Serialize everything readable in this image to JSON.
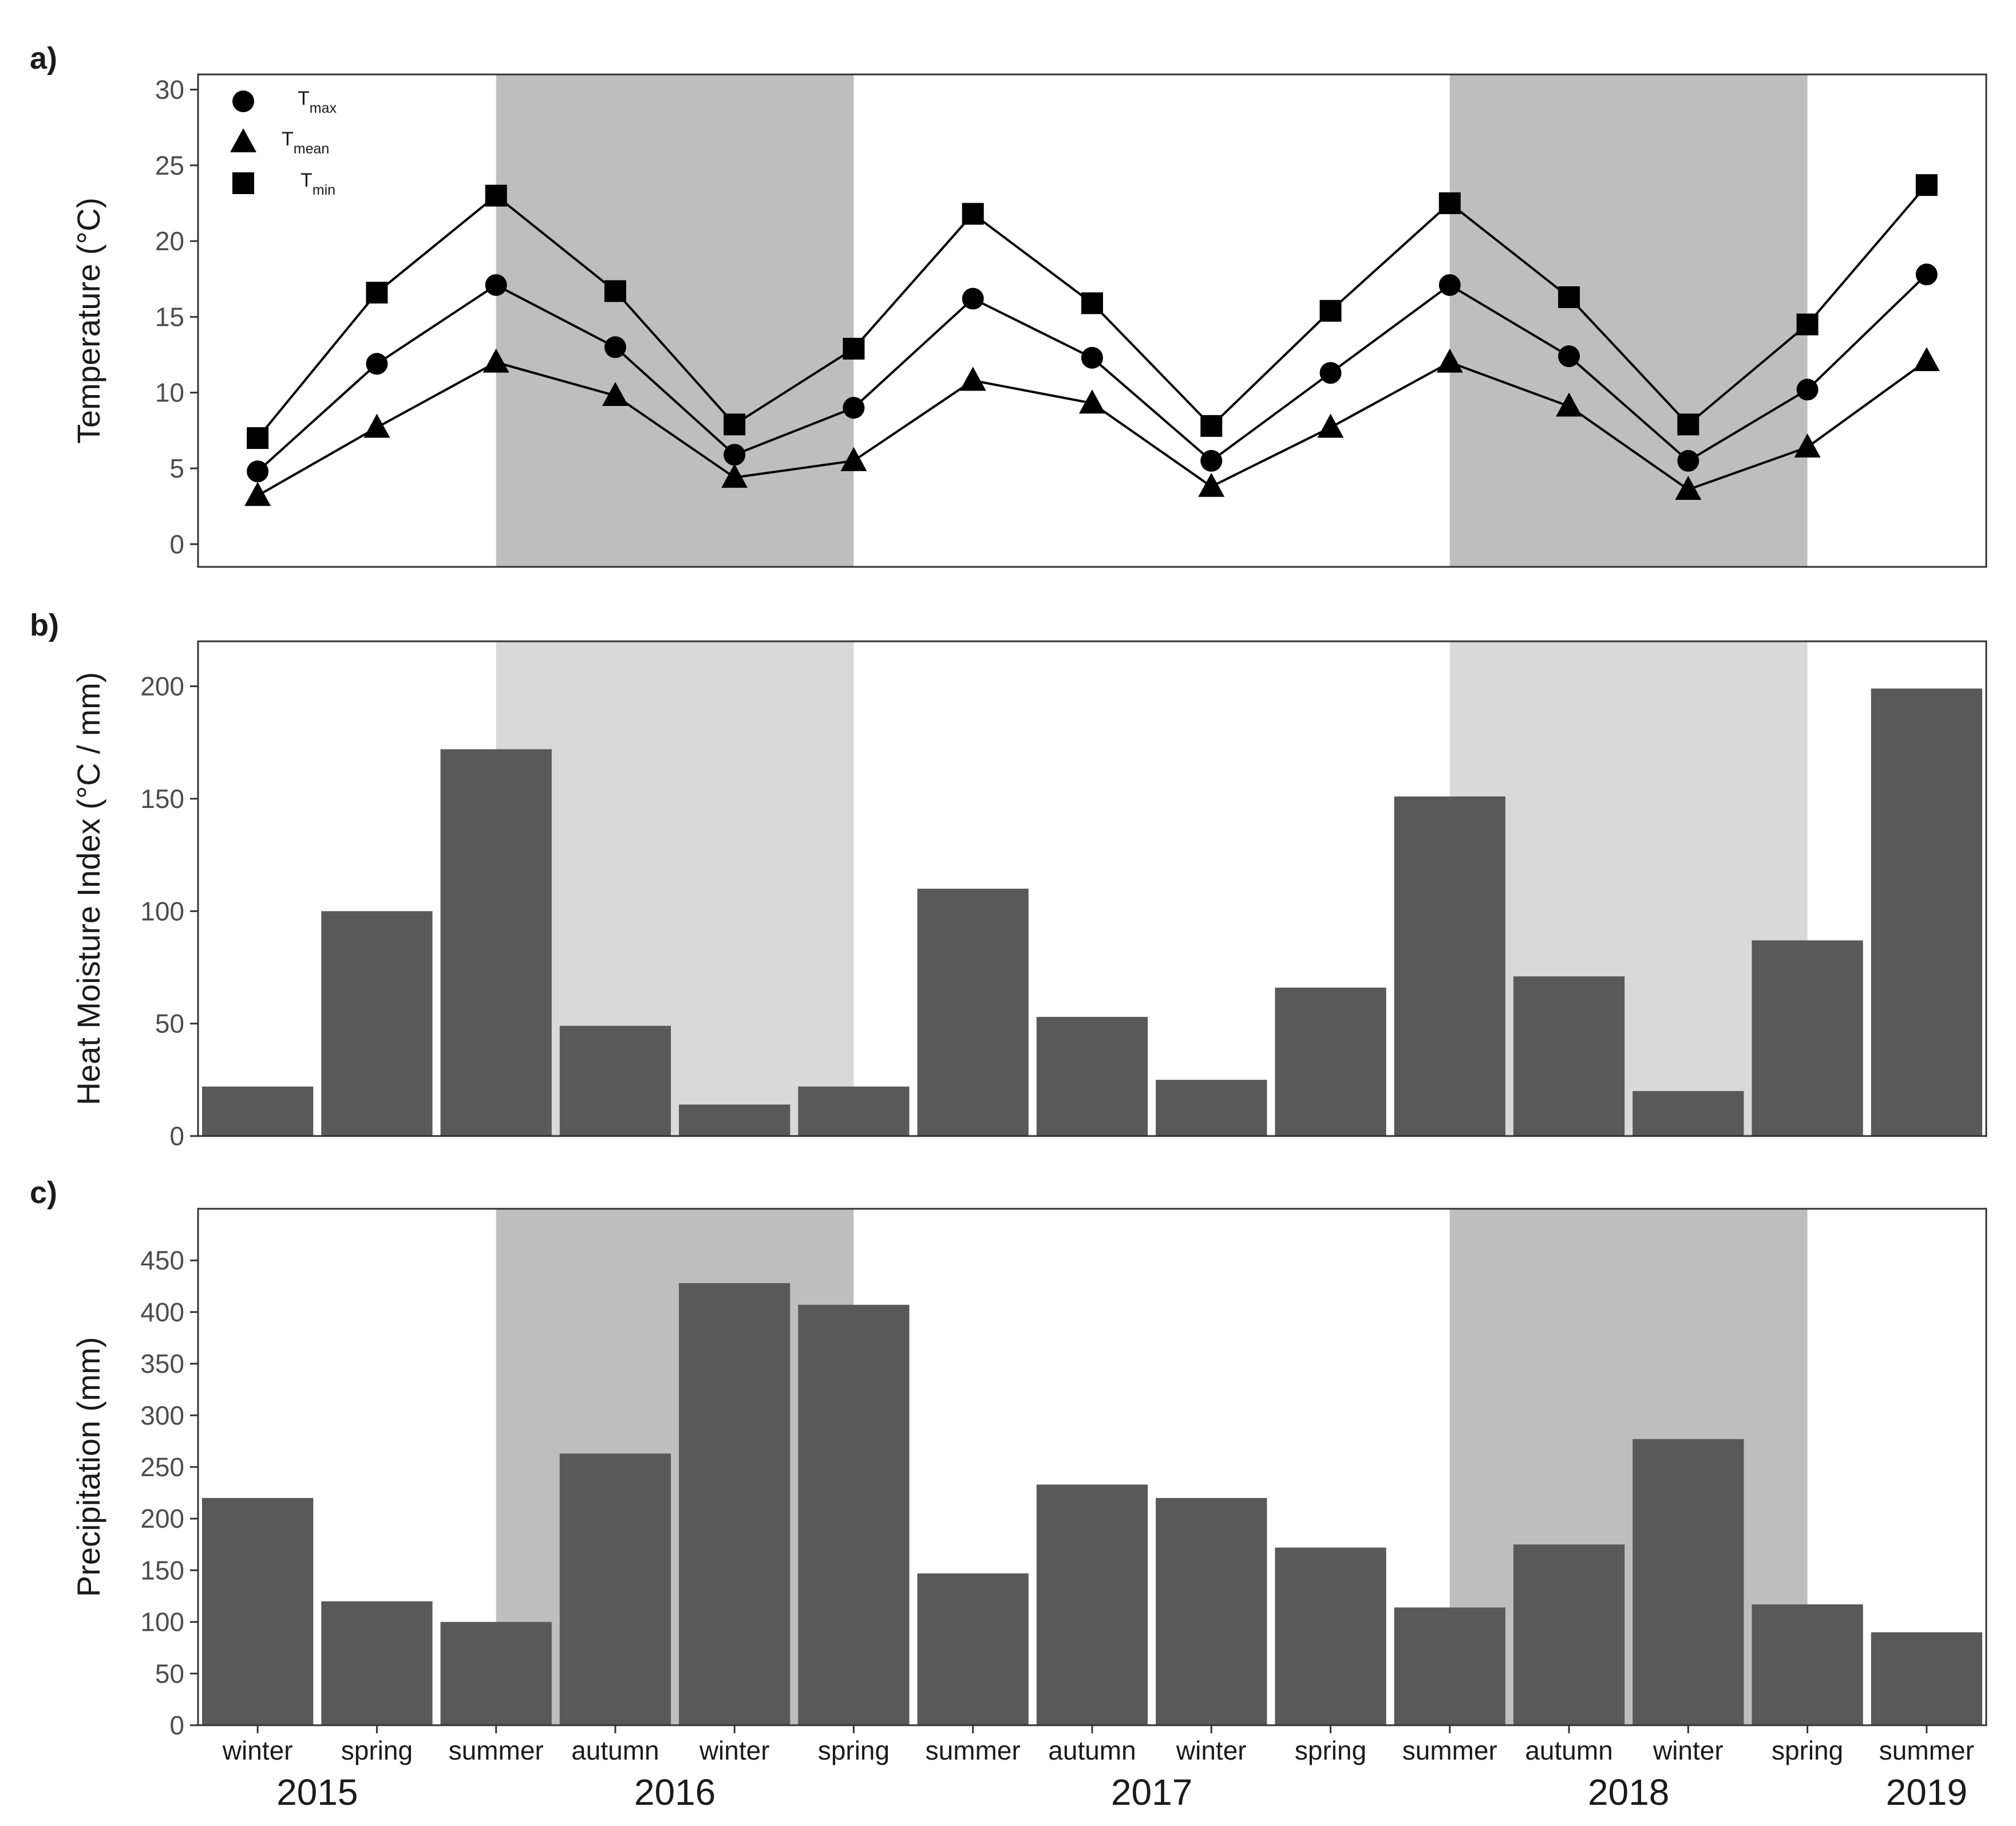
{
  "chart_data": [
    {
      "panel_label": "a)",
      "type": "line",
      "ylabel": "Temperature (°C)",
      "ylim": [
        -1.5,
        31
      ],
      "yticks": [
        0,
        5,
        10,
        15,
        20,
        25,
        30
      ],
      "shaded_spans": [
        [
          2,
          5
        ],
        [
          10,
          13
        ]
      ],
      "shade_color": "#bebebe",
      "legend": [
        {
          "base": "T",
          "sub": "max",
          "marker": "circle"
        },
        {
          "base": "T",
          "sub": "mean",
          "marker": "triangle"
        },
        {
          "base": "T",
          "sub": "min",
          "marker": "square"
        }
      ],
      "series": [
        {
          "name": "Tmin",
          "marker": "square",
          "values": [
            7.0,
            16.6,
            23.0,
            16.7,
            7.9,
            12.9,
            21.8,
            15.9,
            7.8,
            15.4,
            22.5,
            16.3,
            7.9,
            14.5,
            23.7
          ]
        },
        {
          "name": "Tmax",
          "marker": "circle",
          "values": [
            4.8,
            11.9,
            17.1,
            13.0,
            5.9,
            9.0,
            16.2,
            12.3,
            5.5,
            11.3,
            17.1,
            12.4,
            5.5,
            10.2,
            17.8
          ]
        },
        {
          "name": "Tmean",
          "marker": "triangle",
          "values": [
            3.2,
            7.7,
            12.0,
            9.8,
            4.4,
            5.5,
            10.8,
            9.3,
            3.8,
            7.7,
            12.0,
            9.1,
            3.6,
            6.4,
            12.1
          ]
        }
      ]
    },
    {
      "panel_label": "b)",
      "type": "bar",
      "ylabel": "Heat Moisture Index (°C / mm)",
      "ylim": [
        0,
        220
      ],
      "yticks": [
        0,
        50,
        100,
        150,
        200
      ],
      "shaded_spans": [
        [
          2.5,
          5.5
        ],
        [
          10.5,
          13.5
        ]
      ],
      "shade_color": "#d9d9d9",
      "bar_color": "#595959",
      "values": [
        22,
        100,
        172,
        49,
        14,
        22,
        110,
        53,
        25,
        66,
        151,
        71,
        20,
        87,
        199
      ]
    },
    {
      "panel_label": "c)",
      "type": "bar",
      "ylabel": "Precipitation (mm)",
      "ylim": [
        0,
        500
      ],
      "yticks": [
        0,
        50,
        100,
        150,
        200,
        250,
        300,
        350,
        400,
        450
      ],
      "shaded_spans": [
        [
          2.5,
          5.5
        ],
        [
          10.5,
          13.5
        ]
      ],
      "shade_color": "#bebebe",
      "bar_color": "#595959",
      "values": [
        220,
        120,
        100,
        263,
        428,
        407,
        147,
        233,
        220,
        172,
        114,
        175,
        277,
        117,
        90
      ]
    }
  ],
  "categories": [
    "winter",
    "spring",
    "summer",
    "autumn",
    "winter",
    "spring",
    "summer",
    "autumn",
    "winter",
    "spring",
    "summer",
    "autumn",
    "winter",
    "spring",
    "summer"
  ],
  "years": [
    {
      "label": "2015",
      "center": 0.5
    },
    {
      "label": "2016",
      "center": 3.5
    },
    {
      "label": "2017",
      "center": 7.5
    },
    {
      "label": "2018",
      "center": 11.5
    },
    {
      "label": "2019",
      "center": 14.0
    }
  ]
}
